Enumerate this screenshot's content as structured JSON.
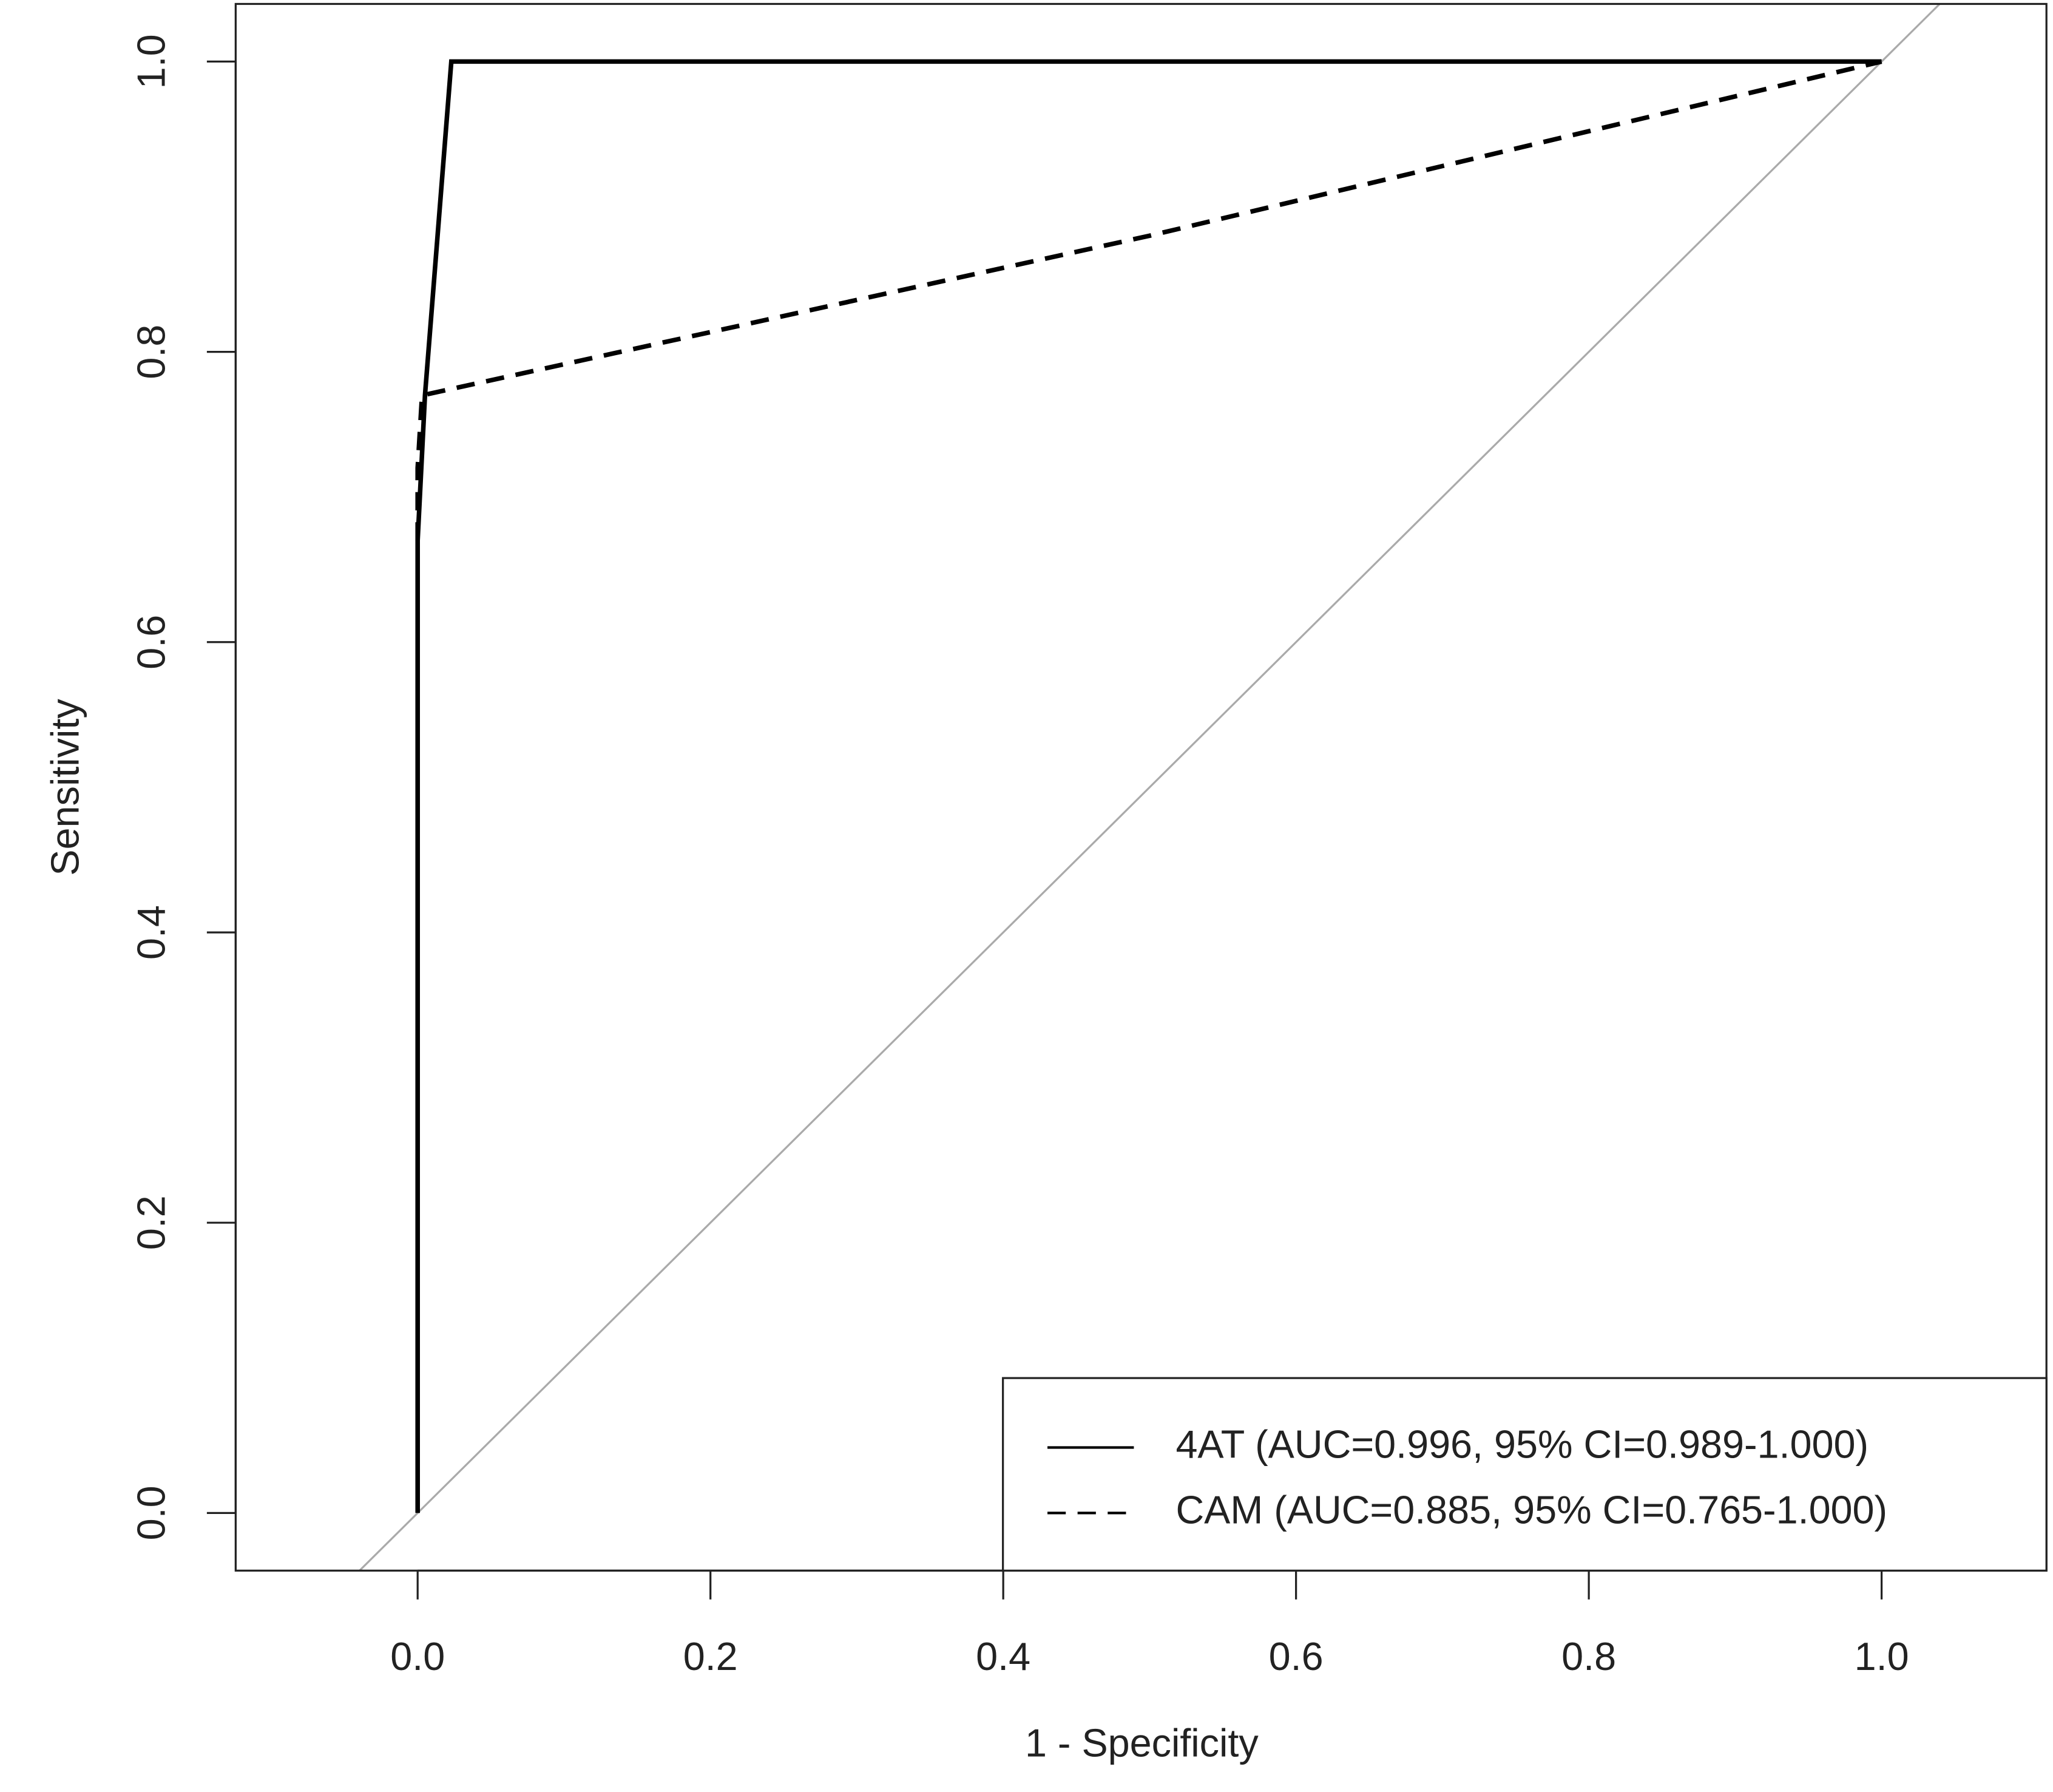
{
  "chart_data": {
    "type": "line",
    "x_label": "1 - Specificity",
    "y_label": "Sensitivity",
    "xlim": [
      -0.1243,
      1.1126
    ],
    "ylim": [
      -0.0397,
      1.0397
    ],
    "xticks": [
      {
        "value": 0,
        "label": "0.0"
      },
      0.2,
      0.4,
      0.6,
      0.8,
      {
        "value": 1,
        "label": "1.0"
      }
    ],
    "yticks": [
      {
        "value": 0,
        "label": "0.0"
      },
      0.2,
      0.4,
      0.6,
      0.8,
      {
        "value": 1,
        "label": "1.0"
      }
    ],
    "legend": "bottomright",
    "series": [
      {
        "name": "4AT (AUC=0.996, 95% CI=0.989-1.000)",
        "color": "#000000",
        "dash": "solid",
        "x": [
          0,
          0,
          0.005,
          0.023,
          1
        ],
        "values": [
          0,
          0.67,
          0.77,
          1,
          1
        ]
      },
      {
        "name": "CAM (AUC=0.885, 95% CI=0.765-1.000)",
        "color": "#000000",
        "dash": "dashed",
        "x": [
          0,
          0,
          0.003,
          0.5,
          1
        ],
        "values": [
          0.67,
          0.72,
          0.77,
          0.88,
          1
        ]
      }
    ]
  }
}
